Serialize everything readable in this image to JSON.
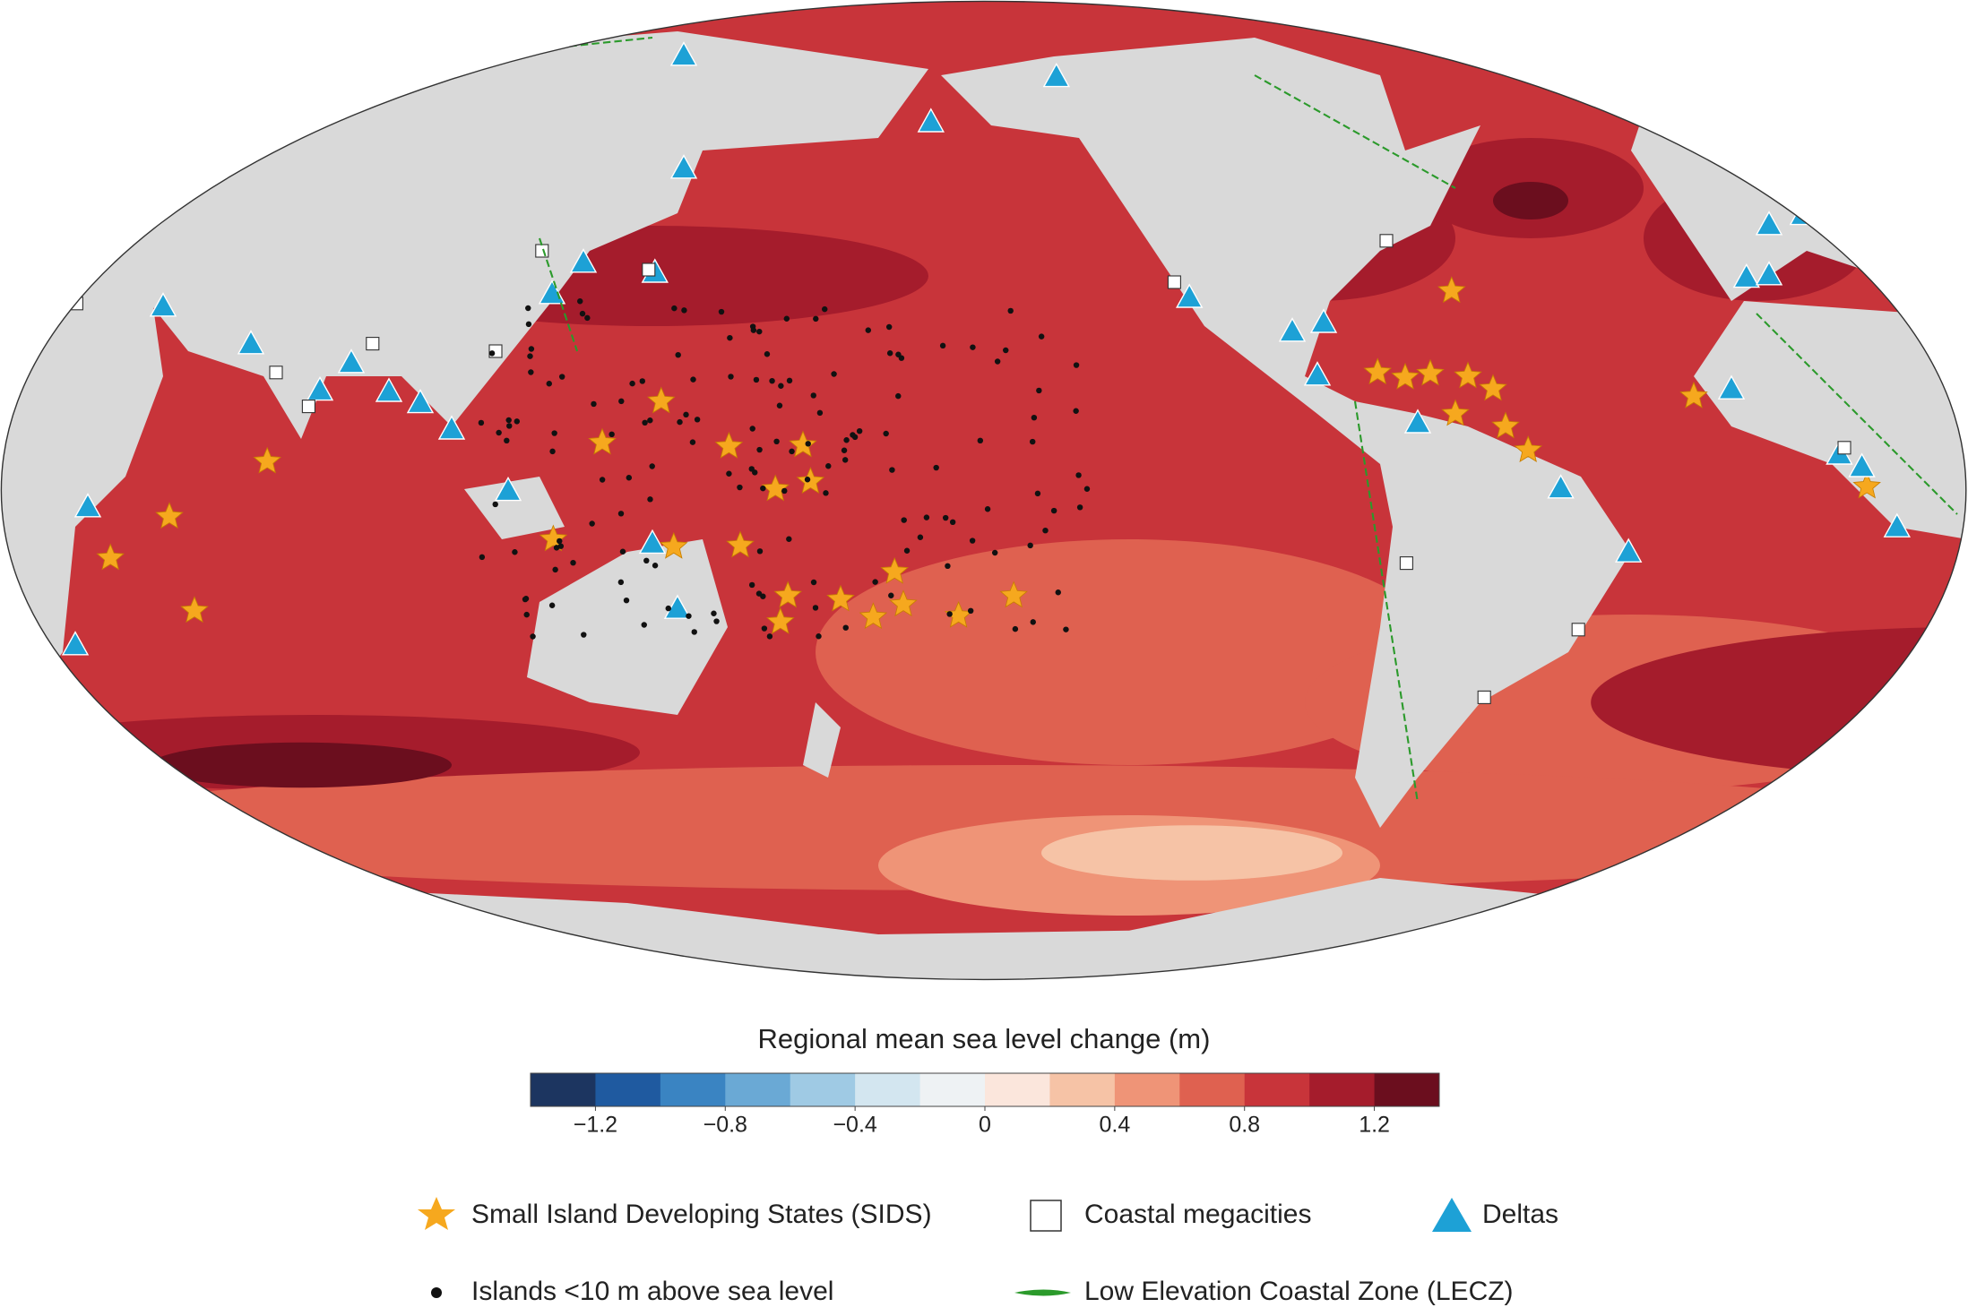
{
  "map": {
    "colorbar": {
      "title": "Regional mean sea level change (m)",
      "lim": [
        -1.4,
        1.4
      ],
      "colors": [
        "#1c3560",
        "#1f5aa0",
        "#3a84c2",
        "#6aa9d5",
        "#9fcae4",
        "#d3e6f0",
        "#eef2f4",
        "#fbe6dc",
        "#f6c3a6",
        "#ef9477",
        "#df6150",
        "#c8343a",
        "#a51c2c",
        "#6b0e1e"
      ],
      "ticks": [
        {
          "value": -1.2,
          "label": "−1.2"
        },
        {
          "value": -0.8,
          "label": "−0.8"
        },
        {
          "value": -0.4,
          "label": "−0.4"
        },
        0,
        0.4,
        0.8,
        1.2
      ]
    },
    "legend": [
      "Small Island Developing States (SIDS)",
      "Coastal megacities",
      "Deltas",
      "Islands <10 m above sea level",
      "Low Elevation Coastal Zone (LECZ)"
    ]
  }
}
